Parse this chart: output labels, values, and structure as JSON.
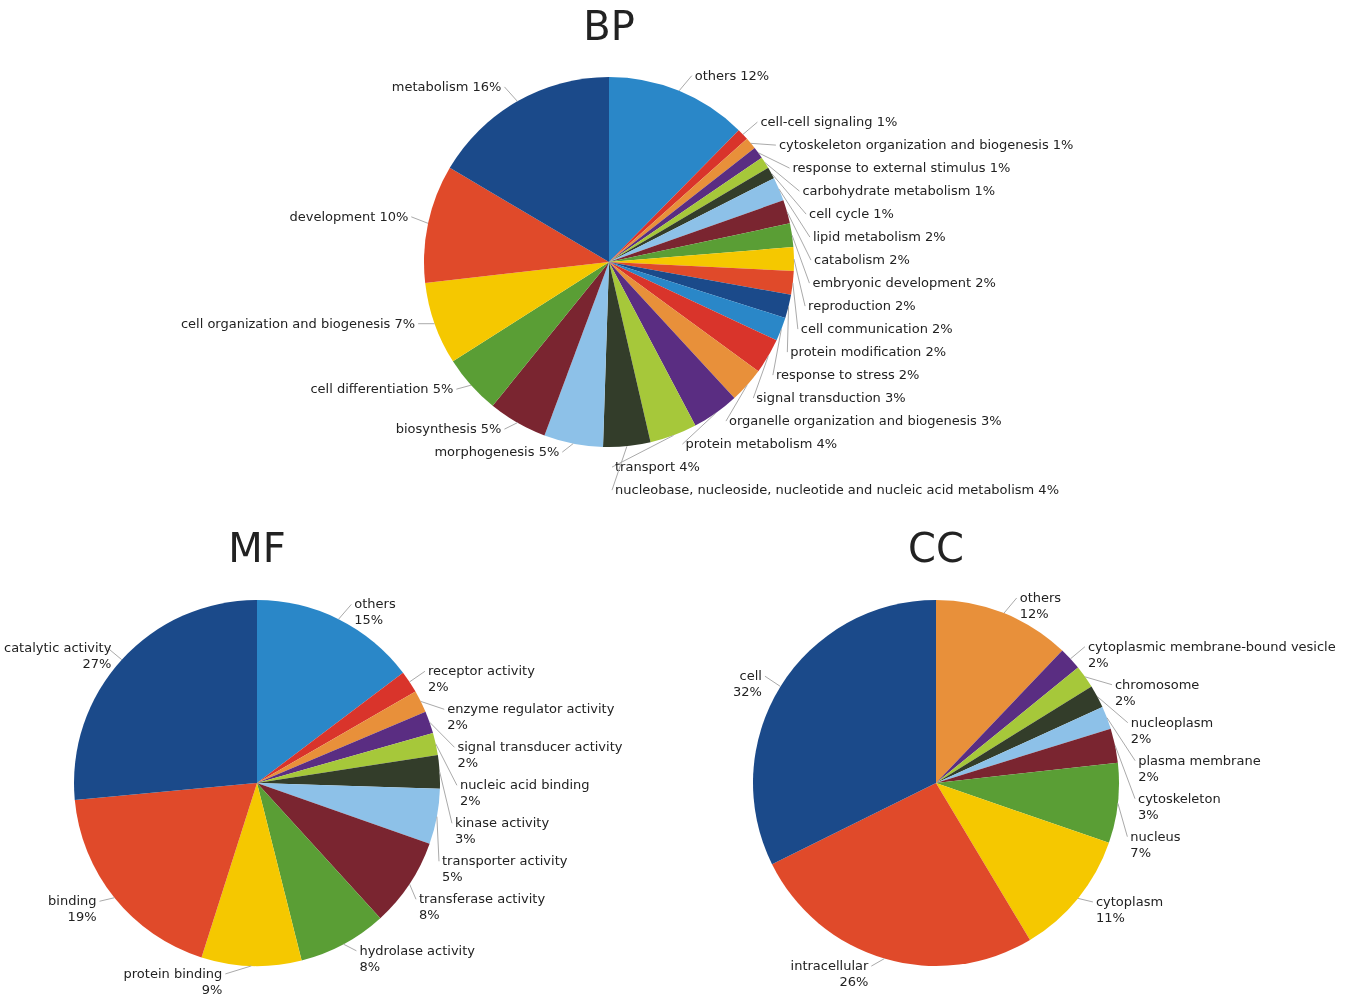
{
  "chart_data": [
    {
      "type": "pie",
      "title": "BP",
      "categories": [
        "others",
        "cell-cell signaling",
        "cytoskeleton organization and biogenesis",
        "response to external stimulus",
        "carbohydrate metabolism",
        "cell cycle",
        "lipid metabolism",
        "catabolism",
        "embryonic development",
        "reproduction",
        "cell communication",
        "protein modification",
        "response to stress",
        "signal transduction",
        "organelle organization and biogenesis",
        "protein metabolism",
        "transport",
        "nucleobase, nucleoside, nucleotide and nucleic acid metabolism",
        "morphogenesis",
        "biosynthesis",
        "cell differentiation",
        "cell organization and biogenesis",
        "development",
        "metabolism"
      ],
      "values": [
        12,
        1,
        1,
        1,
        1,
        1,
        2,
        2,
        2,
        2,
        2,
        2,
        2,
        3,
        3,
        4,
        4,
        4,
        5,
        5,
        5,
        7,
        10,
        16
      ],
      "value_labels": [
        "12%",
        "1%",
        "1%",
        "1%",
        "1%",
        "1%",
        "2%",
        "2%",
        "2%",
        "2%",
        "2%",
        "2%",
        "2%",
        "3%",
        "3%",
        "4%",
        "4%",
        "4%",
        "5%",
        "5%",
        "5%",
        "7%",
        "10%",
        "16%"
      ],
      "colors": [
        "#2a87c8",
        "#d9342b",
        "#e8903a",
        "#5a2d82",
        "#a6c83a",
        "#333d2a",
        "#8dc1e8",
        "#7a2530",
        "#5a9e35",
        "#f5c800",
        "#e04a2a",
        "#1b4a8a",
        "#2a87c8",
        "#d9342b",
        "#e8903a",
        "#5a2d82",
        "#a6c83a",
        "#333d2a",
        "#8dc1e8",
        "#7a2530",
        "#5a9e35",
        "#f5c800",
        "#e04a2a",
        "#1b4a8a"
      ]
    },
    {
      "type": "pie",
      "title": "MF",
      "categories": [
        "others",
        "receptor activity",
        "enzyme regulator activity",
        "signal transducer activity",
        "nucleic acid binding",
        "kinase activity",
        "transporter activity",
        "transferase activity",
        "hydrolase activity",
        "protein binding",
        "binding",
        "catalytic activity"
      ],
      "values": [
        15,
        2,
        2,
        2,
        2,
        3,
        5,
        8,
        8,
        9,
        19,
        27
      ],
      "value_labels": [
        "15%",
        "2%",
        "2%",
        "2%",
        "2%",
        "3%",
        "5%",
        "8%",
        "8%",
        "9%",
        "19%",
        "27%"
      ],
      "colors": [
        "#2a87c8",
        "#d9342b",
        "#e8903a",
        "#5a2d82",
        "#a6c83a",
        "#333d2a",
        "#8dc1e8",
        "#7a2530",
        "#5a9e35",
        "#f5c800",
        "#e04a2a",
        "#1b4a8a"
      ]
    },
    {
      "type": "pie",
      "title": "CC",
      "categories": [
        "others",
        "cytoplasmic membrane-bound vesicle",
        "chromosome",
        "nucleoplasm",
        "plasma membrane",
        "cytoskeleton",
        "nucleus",
        "cytoplasm",
        "intracellular",
        "cell"
      ],
      "values": [
        12,
        2,
        2,
        2,
        2,
        3,
        7,
        11,
        26,
        32
      ],
      "value_labels": [
        "12%",
        "2%",
        "2%",
        "2%",
        "2%",
        "3%",
        "7%",
        "11%",
        "26%",
        "32%"
      ],
      "colors": [
        "#e8903a",
        "#5a2d82",
        "#a6c83a",
        "#333d2a",
        "#8dc1e8",
        "#7a2530",
        "#5a9e35",
        "#f5c800",
        "#e04a2a",
        "#1b4a8a"
      ]
    }
  ]
}
